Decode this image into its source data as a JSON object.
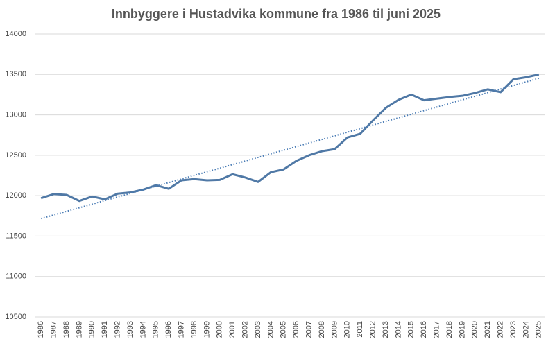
{
  "chart_data": {
    "type": "line",
    "title": "Innbyggere i Hustadvika kommune fra 1986 til juni 2025",
    "categories": [
      "1986",
      "1987",
      "1988",
      "1989",
      "1990",
      "1991",
      "1992",
      "1993",
      "1994",
      "1995",
      "1996",
      "1997",
      "1998",
      "1999",
      "2000",
      "2001",
      "2002",
      "2003",
      "2004",
      "2005",
      "2006",
      "2007",
      "2008",
      "2009",
      "2010",
      "2011",
      "2012",
      "2013",
      "2014",
      "2015",
      "2016",
      "2017",
      "2018",
      "2019",
      "2020",
      "2021",
      "2022",
      "2023",
      "2024",
      "2025"
    ],
    "series": [
      {
        "color": "#5079a6",
        "values": [
          11970,
          12020,
          12010,
          11935,
          11990,
          11955,
          12025,
          12040,
          12075,
          12130,
          12085,
          12190,
          12205,
          12190,
          12195,
          12265,
          12225,
          12170,
          12290,
          12325,
          12430,
          12500,
          12550,
          12575,
          12720,
          12765,
          12930,
          13085,
          13185,
          13250,
          13180,
          13200,
          13220,
          13235,
          13270,
          13315,
          13280,
          13440,
          13465,
          13500
        ]
      }
    ],
    "ylim": [
      10500,
      14000
    ],
    "yticks": [
      10500,
      11000,
      11500,
      12000,
      12500,
      13000,
      13500,
      14000
    ],
    "grid": true,
    "trendline": true,
    "trendline_color": "#4a7cb5"
  }
}
